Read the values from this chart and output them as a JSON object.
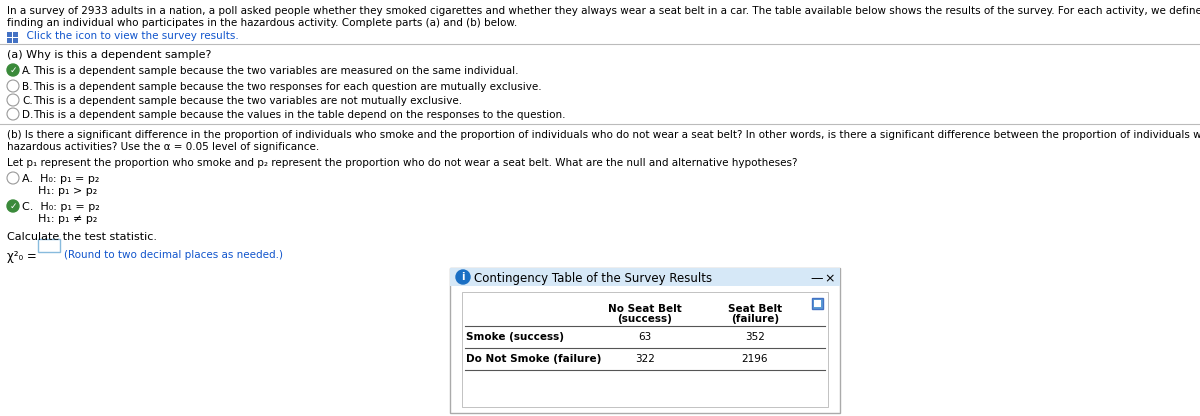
{
  "title_line1": "In a survey of 2933 adults in a nation, a poll asked people whether they smoked cigarettes and whether they always wear a seat belt in a car. The table available below shows the results of the survey. For each activity, we define a success as",
  "title_line2": "finding an individual who participates in the hazardous activity. Complete parts (a) and (b) below.",
  "click_text": "  Click the icon to view the survey results.",
  "part_a_label": "(a) Why is this a dependent sample?",
  "options_a": [
    "This is a dependent sample because the two variables are measured on the same individual.",
    "This is a dependent sample because the two responses for each question are mutually exclusive.",
    "This is a dependent sample because the two variables are not mutually exclusive.",
    "This is a dependent sample because the values in the table depend on the responses to the question."
  ],
  "options_a_letters": [
    "A.",
    "B.",
    "C.",
    "D."
  ],
  "correct_a": 0,
  "part_b_line1": "(b) Is there a significant difference in the proportion of individuals who smoke and the proportion of individuals who do not wear a seat belt? In other words, is there a significant difference between the proportion of individuals who engage in",
  "part_b_line2": "hazardous activities? Use the α = 0.05 level of significance.",
  "let_text": "Let p₁ represent the proportion who smoke and p₂ represent the proportion who do not wear a seat belt. What are the null and alternative hypotheses?",
  "opt_a_h0": "H₀: p₁ = p₂",
  "opt_a_h1": "H₁: p₁ > p₂",
  "opt_c_h0": "H₀: p₁ = p₂",
  "opt_c_h1": "H₁: p₁ ≠ p₂",
  "calc_text": "Calculate the test statistic.",
  "input_hint": "(Round to two decimal places as needed.)",
  "contingency_title": "Contingency Table of the Survey Results",
  "table_col1_header1": "No Seat Belt",
  "table_col1_header2": "(success)",
  "table_col2_header1": "Seat Belt",
  "table_col2_header2": "(failure)",
  "table_row1_label": "Smoke (success)",
  "table_row2_label": "Do Not Smoke (failure)",
  "table_data": [
    [
      63,
      352
    ],
    [
      322,
      2196
    ]
  ],
  "bg_color": "#ffffff",
  "text_color": "#000000",
  "blue_link_color": "#1155cc",
  "green_check_color": "#3a8a3a",
  "radio_border_color": "#999999",
  "separator_color": "#bbbbbb",
  "popup_bg": "#ffffff",
  "popup_border": "#aaaaaa",
  "popup_header_bg": "#d6e8f7",
  "popup_info_bg": "#1a6fc4",
  "input_box_border": "#88bbdd",
  "grid_icon_color": "#4472c4"
}
